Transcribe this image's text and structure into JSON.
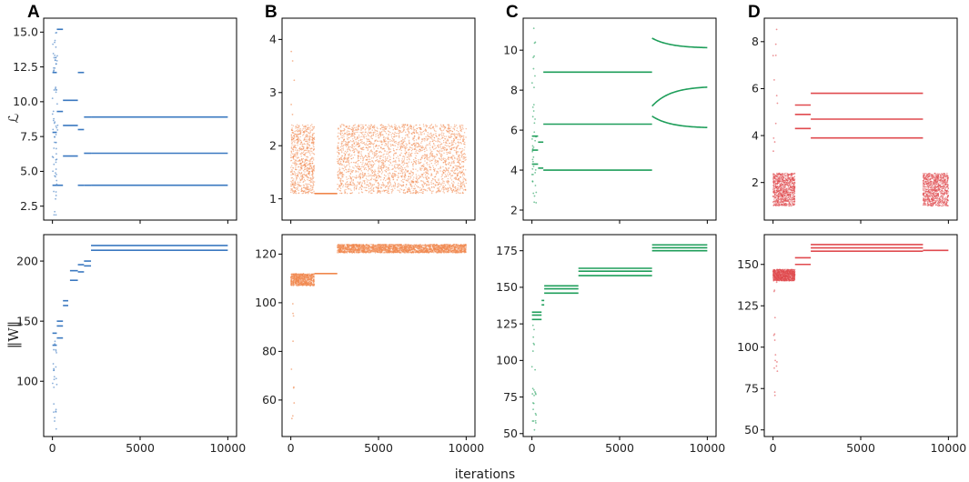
{
  "figure": {
    "xlabel": "iterations",
    "ylabel_top": "ℒ",
    "ylabel_bottom": "‖W‖"
  },
  "chart_data": [
    {
      "panel": "A",
      "type": "scatter",
      "row": "loss",
      "color": "#3a78c0",
      "xlim": [
        -500,
        10500
      ],
      "ylim": [
        1.5,
        16.0
      ],
      "xticks": [
        0,
        5000,
        10000
      ],
      "xtick_labels": [
        "0",
        "5000",
        "10000"
      ],
      "yticks": [
        2.5,
        5.0,
        7.5,
        10.0,
        12.5,
        15.0
      ],
      "ytick_labels": [
        "2.5",
        "5.0",
        "7.5",
        "10.0",
        "12.5",
        "15.0"
      ],
      "segments": [
        {
          "x0": 0,
          "x1": 250,
          "y": [
            4.0,
            7.8,
            12.1
          ]
        },
        {
          "x0": 250,
          "x1": 600,
          "y": [
            4.0,
            9.3,
            15.2
          ]
        },
        {
          "x0": 600,
          "x1": 1450,
          "y": [
            6.1,
            8.3,
            10.1
          ]
        },
        {
          "x0": 1450,
          "x1": 1800,
          "y": [
            4.0,
            8.0,
            12.1
          ]
        },
        {
          "x0": 1800,
          "x1": 2200,
          "y": [
            4.0,
            6.3,
            8.9
          ]
        },
        {
          "x0": 2200,
          "x1": 10000,
          "y": [
            4.0,
            6.3,
            8.9
          ]
        }
      ],
      "noise": {
        "x0": 0,
        "x1": 300,
        "ymin": 1.8,
        "ymax": 15.0,
        "count": 70
      }
    },
    {
      "panel": "B",
      "type": "scatter",
      "row": "loss",
      "color": "#f0874c",
      "xlim": [
        -500,
        10500
      ],
      "ylim": [
        0.6,
        4.4
      ],
      "xticks": [
        0,
        5000,
        10000
      ],
      "xtick_labels": [
        "0",
        "5000",
        "10000"
      ],
      "yticks": [
        1,
        2,
        3,
        4
      ],
      "ytick_labels": [
        "1",
        "2",
        "3",
        "4"
      ],
      "segments": [
        {
          "x0": 1350,
          "x1": 2650,
          "y": [
            1.1
          ]
        }
      ],
      "bands": [
        {
          "x0": 0,
          "x1": 1350,
          "ymin": 1.1,
          "ymax": 2.4,
          "count": 700
        },
        {
          "x0": 2650,
          "x1": 10000,
          "ymin": 1.1,
          "ymax": 2.4,
          "count": 2600
        }
      ],
      "noise": {
        "x0": 0,
        "x1": 200,
        "ymin": 1.2,
        "ymax": 4.1,
        "count": 8
      }
    },
    {
      "panel": "C",
      "type": "scatter",
      "row": "loss",
      "color": "#1e9e5a",
      "xlim": [
        -500,
        10500
      ],
      "ylim": [
        1.5,
        11.6
      ],
      "xticks": [
        0,
        5000,
        10000
      ],
      "xtick_labels": [
        "0",
        "5000",
        "10000"
      ],
      "yticks": [
        2,
        4,
        6,
        8,
        10
      ],
      "ytick_labels": [
        "2",
        "4",
        "6",
        "8",
        "10"
      ],
      "segments": [
        {
          "x0": 0,
          "x1": 350,
          "y": [
            4.3,
            5.0,
            5.7
          ]
        },
        {
          "x0": 350,
          "x1": 650,
          "y": [
            4.1,
            5.4
          ]
        },
        {
          "x0": 650,
          "x1": 6850,
          "y": [
            4.0,
            6.3,
            8.9
          ]
        }
      ],
      "curves": [
        {
          "x0": 6850,
          "x1": 10000,
          "y0": 10.6,
          "y1": 10.1
        },
        {
          "x0": 6850,
          "x1": 10000,
          "y0": 7.2,
          "y1": 8.2
        },
        {
          "x0": 6850,
          "x1": 10000,
          "y0": 6.7,
          "y1": 6.1
        }
      ],
      "noise": {
        "x0": 0,
        "x1": 250,
        "ymin": 2.0,
        "ymax": 11.3,
        "count": 40
      }
    },
    {
      "panel": "D",
      "type": "scatter",
      "row": "loss",
      "color": "#e04a4f",
      "xlim": [
        -500,
        10500
      ],
      "ylim": [
        0.4,
        9.0
      ],
      "xticks": [
        0,
        5000,
        10000
      ],
      "xtick_labels": [
        "0",
        "5000",
        "10000"
      ],
      "yticks": [
        2,
        4,
        6,
        8
      ],
      "ytick_labels": [
        "2",
        "4",
        "6",
        "8"
      ],
      "segments": [
        {
          "x0": 1250,
          "x1": 2150,
          "y": [
            4.3,
            4.9,
            5.3
          ]
        },
        {
          "x0": 2150,
          "x1": 8550,
          "y": [
            3.9,
            4.7,
            5.8
          ]
        }
      ],
      "bands": [
        {
          "x0": 0,
          "x1": 1250,
          "ymin": 1.0,
          "ymax": 2.4,
          "count": 900
        },
        {
          "x0": 8550,
          "x1": 10000,
          "ymin": 1.0,
          "ymax": 2.4,
          "count": 900
        }
      ],
      "noise": {
        "x0": 0,
        "x1": 250,
        "ymin": 2.0,
        "ymax": 8.8,
        "count": 12
      }
    },
    {
      "panel": "A",
      "type": "scatter",
      "row": "norm",
      "color": "#3a78c0",
      "xlim": [
        -500,
        10500
      ],
      "ylim": [
        54,
        222
      ],
      "xticks": [
        0,
        5000,
        10000
      ],
      "xtick_labels": [
        "0",
        "5000",
        "10000"
      ],
      "yticks": [
        100,
        150,
        200
      ],
      "ytick_labels": [
        "100",
        "150",
        "200"
      ],
      "segments": [
        {
          "x0": 0,
          "x1": 250,
          "y": [
            130,
            140
          ]
        },
        {
          "x0": 250,
          "x1": 600,
          "y": [
            136,
            146,
            150
          ]
        },
        {
          "x0": 600,
          "x1": 900,
          "y": [
            163,
            167
          ]
        },
        {
          "x0": 1000,
          "x1": 1450,
          "y": [
            184,
            192
          ]
        },
        {
          "x0": 1450,
          "x1": 1800,
          "y": [
            191,
            197
          ]
        },
        {
          "x0": 1800,
          "x1": 2200,
          "y": [
            196,
            200
          ]
        },
        {
          "x0": 2200,
          "x1": 10000,
          "y": [
            209,
            213
          ]
        }
      ],
      "noise": {
        "x0": 0,
        "x1": 250,
        "ymin": 58,
        "ymax": 135,
        "count": 25
      }
    },
    {
      "panel": "B",
      "type": "scatter",
      "row": "norm",
      "color": "#f0874c",
      "xlim": [
        -500,
        10500
      ],
      "ylim": [
        45,
        128
      ],
      "xticks": [
        0,
        5000,
        10000
      ],
      "xtick_labels": [
        "0",
        "5000",
        "10000"
      ],
      "yticks": [
        60,
        80,
        100,
        120
      ],
      "ytick_labels": [
        "60",
        "80",
        "100",
        "120"
      ],
      "segments": [
        {
          "x0": 1350,
          "x1": 2650,
          "y": [
            112
          ]
        }
      ],
      "bands": [
        {
          "x0": 0,
          "x1": 1350,
          "ymin": 107,
          "ymax": 112,
          "count": 700
        },
        {
          "x0": 2650,
          "x1": 10000,
          "ymin": 120.5,
          "ymax": 124,
          "count": 2400
        }
      ],
      "noise": {
        "x0": 0,
        "x1": 200,
        "ymin": 50,
        "ymax": 110,
        "count": 10
      }
    },
    {
      "panel": "C",
      "type": "scatter",
      "row": "norm",
      "color": "#1e9e5a",
      "xlim": [
        -500,
        10500
      ],
      "ylim": [
        48,
        186
      ],
      "xticks": [
        0,
        5000,
        10000
      ],
      "xtick_labels": [
        "0",
        "5000",
        "10000"
      ],
      "yticks": [
        50,
        75,
        100,
        125,
        150,
        175
      ],
      "ytick_labels": [
        "50",
        "75",
        "100",
        "125",
        "150",
        "175"
      ],
      "segments": [
        {
          "x0": 0,
          "x1": 550,
          "y": [
            128,
            131,
            133
          ]
        },
        {
          "x0": 550,
          "x1": 700,
          "y": [
            138,
            141
          ]
        },
        {
          "x0": 700,
          "x1": 2650,
          "y": [
            146,
            149,
            151
          ]
        },
        {
          "x0": 2650,
          "x1": 6850,
          "y": [
            158,
            161,
            163
          ]
        },
        {
          "x0": 6850,
          "x1": 10000,
          "y": [
            175,
            177,
            179
          ]
        }
      ],
      "noise": {
        "x0": 0,
        "x1": 250,
        "ymin": 52,
        "ymax": 128,
        "count": 25
      }
    },
    {
      "panel": "D",
      "type": "scatter",
      "row": "norm",
      "color": "#e04a4f",
      "xlim": [
        -500,
        10500
      ],
      "ylim": [
        46,
        168
      ],
      "xticks": [
        0,
        5000,
        10000
      ],
      "xtick_labels": [
        "0",
        "5000",
        "10000"
      ],
      "yticks": [
        50,
        75,
        100,
        125,
        150
      ],
      "ytick_labels": [
        "50",
        "75",
        "100",
        "125",
        "150"
      ],
      "segments": [
        {
          "x0": 1250,
          "x1": 2150,
          "y": [
            150,
            154
          ]
        },
        {
          "x0": 2150,
          "x1": 8550,
          "y": [
            158,
            160,
            162
          ]
        },
        {
          "x0": 8550,
          "x1": 10000,
          "y": [
            158.5
          ]
        }
      ],
      "bands": [
        {
          "x0": 0,
          "x1": 1250,
          "ymin": 140,
          "ymax": 147,
          "count": 900
        }
      ],
      "noise": {
        "x0": 0,
        "x1": 250,
        "ymin": 50,
        "ymax": 140,
        "count": 15
      }
    }
  ]
}
